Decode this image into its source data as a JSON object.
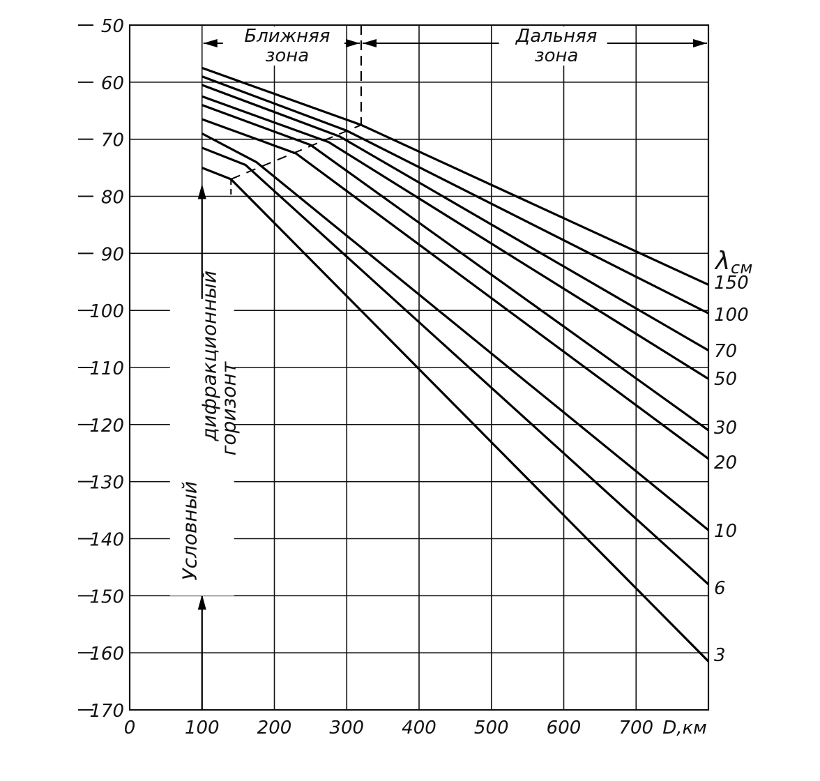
{
  "chart_data": {
    "type": "line",
    "xlabel": "D,км",
    "ylabel": "",
    "xlim": [
      0,
      700
    ],
    "ylim": [
      -170,
      -50
    ],
    "x_ticks": [
      "0",
      "100",
      "200",
      "300",
      "400",
      "500",
      "600",
      "700"
    ],
    "y_ticks": [
      "-50",
      "-60",
      "-70",
      "-80",
      "-90",
      "-100",
      "-110",
      "-120",
      "-130",
      "-140",
      "-150",
      "-160",
      "-170"
    ],
    "grid": true,
    "legend_title": "λ см",
    "legend_placement": "right",
    "zones": {
      "near": "Ближняя зона",
      "far": "Дальняя зона",
      "boundary_x": 320
    },
    "horizon": {
      "label_line1": "Условный",
      "label_line2": "дифракционный",
      "label_line3": "горизонт",
      "x": 100
    },
    "series": [
      {
        "name": "150",
        "points": [
          [
            100,
            -57.5
          ],
          [
            320,
            -67.5
          ],
          [
            800,
            -95.5
          ]
        ]
      },
      {
        "name": "100",
        "points": [
          [
            100,
            -59
          ],
          [
            300,
            -68.5
          ],
          [
            800,
            -100.5
          ]
        ]
      },
      {
        "name": "70",
        "points": [
          [
            100,
            -60.5
          ],
          [
            290,
            -69.5
          ],
          [
            800,
            -107
          ]
        ]
      },
      {
        "name": "50",
        "points": [
          [
            100,
            -62.5
          ],
          [
            275,
            -70.5
          ],
          [
            800,
            -112
          ]
        ]
      },
      {
        "name": "30",
        "points": [
          [
            100,
            -64
          ],
          [
            250,
            -71
          ],
          [
            800,
            -121
          ]
        ]
      },
      {
        "name": "20",
        "points": [
          [
            100,
            -66.5
          ],
          [
            230,
            -72.5
          ],
          [
            800,
            -126
          ]
        ]
      },
      {
        "name": "10",
        "points": [
          [
            100,
            -69
          ],
          [
            175,
            -74
          ],
          [
            800,
            -138.5
          ]
        ]
      },
      {
        "name": "6",
        "points": [
          [
            100,
            -71.5
          ],
          [
            160,
            -74.5
          ],
          [
            800,
            -148
          ]
        ]
      },
      {
        "name": "3",
        "points": [
          [
            100,
            -75
          ],
          [
            140,
            -77
          ],
          [
            800,
            -161.5
          ]
        ]
      }
    ],
    "transition_line": [
      [
        140,
        -77
      ],
      [
        320,
        -67.5
      ]
    ]
  }
}
